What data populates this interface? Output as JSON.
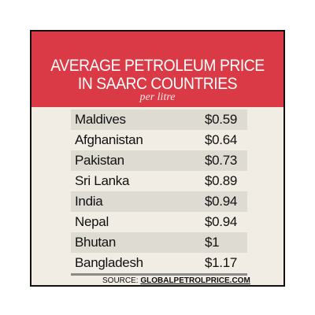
{
  "header": {
    "title_lines": [
      "AVERAGE PETROLEUM PRICE",
      "IN SAARC COUNTRIES"
    ],
    "subtitle": "per litre"
  },
  "table": {
    "rows": [
      [
        "Maldives",
        "$0.59"
      ],
      [
        "Afghanistan",
        "$0.64"
      ],
      [
        "Pakistan",
        "$0.73"
      ],
      [
        "Sri Lanka",
        "$0.89"
      ],
      [
        "India",
        "$0.94"
      ],
      [
        "Nepal",
        "$0.94"
      ],
      [
        "Bhutan",
        "$1"
      ],
      [
        "Bangladesh",
        "$1.17"
      ]
    ]
  },
  "source": {
    "label": "SOURCE:",
    "text": "GLOBALPETROLPRICE.COM"
  }
}
